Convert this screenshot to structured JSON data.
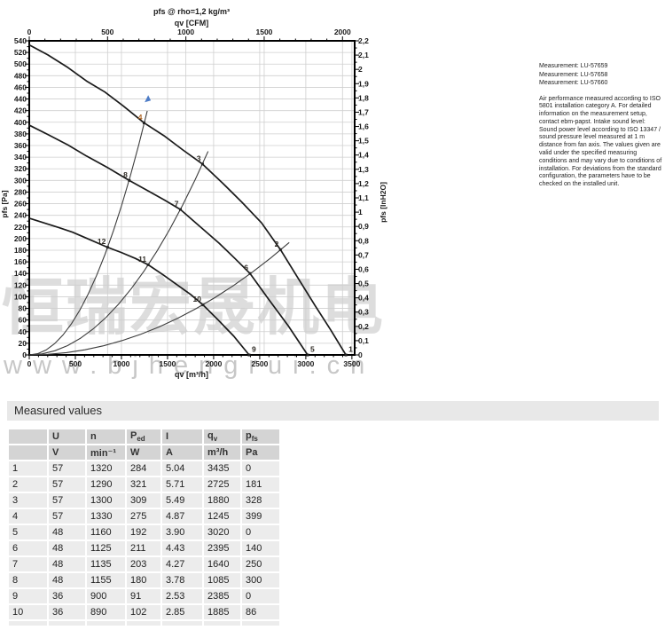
{
  "colors": {
    "curve": "#1a1a1a",
    "system_line": "#3c3c3c",
    "grid": "#cfcfcf",
    "axis": "#000000",
    "tick_label": "#1a1a1a",
    "point_label": "#2e2a24",
    "point_label_accent": "#b06a2c",
    "arrow_blue": "#4d7cc7",
    "watermark": "#bdbdbd",
    "section_bar_bg": "#e8e8e8",
    "table_header_bg": "#d4d4d4",
    "table_cell_bg": "#ececec"
  },
  "watermark": {
    "cjk": "恒瑞宏晟机电",
    "url": "www.bjhengrui.cn"
  },
  "measurements": {
    "lines": [
      "Measurement: LU-57659",
      "Measurement: LU-57658",
      "Measurement: LU-57660"
    ]
  },
  "note": "Air performance measured according to ISO 5801 installation category A. For detailed information on the measurement setup, contact ebm-papst. Intake sound level: Sound power level according to ISO 13347 / sound pressure level measured at 1 m distance from fan axis. The values given are valid under the specified measuring conditions and may vary due to conditions of installation. For deviations from the standard configuration, the parameters have to be checked on the installed unit.",
  "section": {
    "title": "Measured values"
  },
  "chart_data": {
    "type": "line",
    "title": "pfs @ rho=1,2 kg/m³",
    "top_axis_label": "qv [CFM]",
    "bottom_axis_label": "qv [m³/h]",
    "left_axis_label": "pfs [Pa]",
    "right_axis_label": "pfs [InH2O]",
    "x_range_m3h": [
      0,
      3530
    ],
    "y_range_pa": [
      0,
      540
    ],
    "right_range_inh2o": [
      0,
      2.2
    ],
    "grid": true,
    "bottom_ticks": {
      "step": 500,
      "minor_step": 100,
      "labels": [
        "0",
        "500",
        "1000",
        "1500",
        "2000",
        "2500",
        "3000",
        "3500"
      ]
    },
    "top_ticks": {
      "step_cfm": 500,
      "minor_step_cfm": 100,
      "labels": [
        "0",
        "500",
        "1000",
        "1500",
        "2000"
      ]
    },
    "left_ticks": {
      "step_pa": 20,
      "minor_step_pa": 10,
      "labels": [
        "540",
        "520",
        "500",
        "480",
        "460",
        "440",
        "420",
        "400",
        "380",
        "360",
        "340",
        "320",
        "300",
        "280",
        "260",
        "240",
        "220",
        "200",
        "180",
        "160",
        "140",
        "120",
        "100",
        "80",
        "60",
        "40",
        "20",
        "0"
      ]
    },
    "right_ticks": {
      "step": 0.1,
      "minor_step": 0.05,
      "labels": [
        "2,2",
        "2,1",
        "2",
        "1,9",
        "1,8",
        "1,7",
        "1,6",
        "1,5",
        "1,4",
        "1,3",
        "1,2",
        "1,1",
        "1",
        "0,9",
        "0,8",
        "0,7",
        "0,6",
        "0,5",
        "0,4",
        "0,3",
        "0,2",
        "0,1",
        "0"
      ]
    },
    "series": [
      {
        "name": "fan-curve-57V",
        "voltage": "57 V",
        "points": [
          [
            0,
            533
          ],
          [
            200,
            516
          ],
          [
            420,
            494
          ],
          [
            620,
            471
          ],
          [
            820,
            452
          ],
          [
            1020,
            428
          ],
          [
            1245,
            399
          ],
          [
            1460,
            377
          ],
          [
            1670,
            352
          ],
          [
            1880,
            328
          ],
          [
            2100,
            295
          ],
          [
            2310,
            262
          ],
          [
            2520,
            227
          ],
          [
            2725,
            181
          ],
          [
            2900,
            136
          ],
          [
            3100,
            85
          ],
          [
            3270,
            43
          ],
          [
            3435,
            0
          ]
        ]
      },
      {
        "name": "fan-curve-48V",
        "voltage": "48 V",
        "points": [
          [
            0,
            395
          ],
          [
            200,
            379
          ],
          [
            420,
            361
          ],
          [
            620,
            342
          ],
          [
            850,
            322
          ],
          [
            1085,
            300
          ],
          [
            1300,
            281
          ],
          [
            1470,
            266
          ],
          [
            1640,
            250
          ],
          [
            1850,
            221
          ],
          [
            2060,
            192
          ],
          [
            2230,
            166
          ],
          [
            2395,
            140
          ],
          [
            2600,
            95
          ],
          [
            2810,
            50
          ],
          [
            3020,
            0
          ]
        ]
      },
      {
        "name": "fan-curve-36V",
        "voltage": "36 V",
        "points": [
          [
            0,
            235
          ],
          [
            160,
            227
          ],
          [
            320,
            219
          ],
          [
            470,
            211
          ],
          [
            660,
            198
          ],
          [
            850,
            185
          ],
          [
            1000,
            176
          ],
          [
            1150,
            166
          ],
          [
            1290,
            155
          ],
          [
            1450,
            138
          ],
          [
            1600,
            121
          ],
          [
            1750,
            104
          ],
          [
            1885,
            86
          ],
          [
            2050,
            60
          ],
          [
            2220,
            32
          ],
          [
            2385,
            0
          ]
        ]
      }
    ],
    "system_curves": [
      {
        "name": "system-curve-A",
        "k": 0.000256,
        "q_end": 1280,
        "arrow": true
      },
      {
        "name": "system-curve-B",
        "k": 9.3e-05,
        "q_end": 1940,
        "arrow": false
      },
      {
        "name": "system-curve-C",
        "k": 2.43e-05,
        "q_end": 2820,
        "arrow": false
      }
    ],
    "operating_points": [
      {
        "id": "1",
        "qv": 3435,
        "pfs": 0
      },
      {
        "id": "2",
        "qv": 2725,
        "pfs": 181
      },
      {
        "id": "3",
        "qv": 1880,
        "pfs": 328
      },
      {
        "id": "4",
        "qv": 1245,
        "pfs": 399
      },
      {
        "id": "5",
        "qv": 3020,
        "pfs": 0
      },
      {
        "id": "6",
        "qv": 2395,
        "pfs": 140
      },
      {
        "id": "7",
        "qv": 1640,
        "pfs": 250
      },
      {
        "id": "8",
        "qv": 1085,
        "pfs": 300
      },
      {
        "id": "9",
        "qv": 2385,
        "pfs": 0
      },
      {
        "id": "10",
        "qv": 1885,
        "pfs": 86
      },
      {
        "id": "11",
        "qv": 1290,
        "pfs": 155
      },
      {
        "id": "12",
        "qv": 850,
        "pfs": 185
      }
    ]
  },
  "table": {
    "headers": [
      {
        "t": ""
      },
      {
        "t": "U"
      },
      {
        "t": "n"
      },
      {
        "t": "P",
        "s": "ed"
      },
      {
        "t": "I"
      },
      {
        "t": "q",
        "s": "v"
      },
      {
        "t": "p",
        "s": "fs"
      }
    ],
    "units": [
      "",
      "V",
      "min⁻¹",
      "W",
      "A",
      "m³/h",
      "Pa"
    ],
    "rows": [
      [
        "1",
        "57",
        "1320",
        "284",
        "5.04",
        "3435",
        "0"
      ],
      [
        "2",
        "57",
        "1290",
        "321",
        "5.71",
        "2725",
        "181"
      ],
      [
        "3",
        "57",
        "1300",
        "309",
        "5.49",
        "1880",
        "328"
      ],
      [
        "4",
        "57",
        "1330",
        "275",
        "4.87",
        "1245",
        "399"
      ],
      [
        "5",
        "48",
        "1160",
        "192",
        "3.90",
        "3020",
        "0"
      ],
      [
        "6",
        "48",
        "1125",
        "211",
        "4.43",
        "2395",
        "140"
      ],
      [
        "7",
        "48",
        "1135",
        "203",
        "4.27",
        "1640",
        "250"
      ],
      [
        "8",
        "48",
        "1155",
        "180",
        "3.78",
        "1085",
        "300"
      ],
      [
        "9",
        "36",
        "900",
        "91",
        "2.53",
        "2385",
        "0"
      ],
      [
        "10",
        "36",
        "890",
        "102",
        "2.85",
        "1885",
        "86"
      ]
    ]
  }
}
